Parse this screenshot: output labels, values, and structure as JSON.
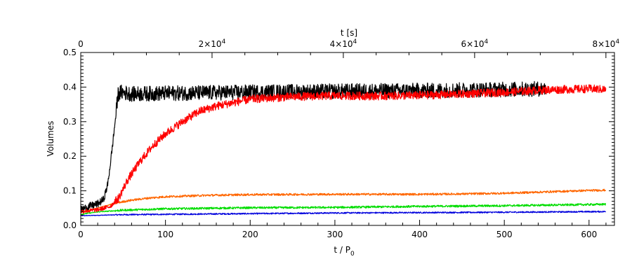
{
  "chart_data": {
    "type": "line",
    "title": "",
    "xlabel": "t / P",
    "xlabel_subscript": "0",
    "ylabel": "Volumes",
    "top_xlabel": "t [s]",
    "xlim": [
      0,
      630
    ],
    "ylim": [
      0,
      0.5
    ],
    "top_xlim": [
      0,
      81300
    ],
    "x_ticks": [
      {
        "value": 0,
        "label": "0"
      },
      {
        "value": 100,
        "label": "100"
      },
      {
        "value": 200,
        "label": "200"
      },
      {
        "value": 300,
        "label": "300"
      },
      {
        "value": 400,
        "label": "400"
      },
      {
        "value": 500,
        "label": "500"
      },
      {
        "value": 600,
        "label": "600"
      }
    ],
    "y_ticks": [
      {
        "value": 0.0,
        "label": "0.0"
      },
      {
        "value": 0.1,
        "label": "0.1"
      },
      {
        "value": 0.2,
        "label": "0.2"
      },
      {
        "value": 0.3,
        "label": "0.3"
      },
      {
        "value": 0.4,
        "label": "0.4"
      },
      {
        "value": 0.5,
        "label": "0.5"
      }
    ],
    "top_ticks": [
      {
        "value": 0,
        "mantissa": "0",
        "exponent": ""
      },
      {
        "value": 20000,
        "mantissa": "2×10",
        "exponent": "4"
      },
      {
        "value": 40000,
        "mantissa": "4×10",
        "exponent": "4"
      },
      {
        "value": 60000,
        "mantissa": "6×10",
        "exponent": "4"
      },
      {
        "value": 80000,
        "mantissa": "8×10",
        "exponent": "4"
      }
    ],
    "grid": false,
    "series": [
      {
        "color": "#0000dd",
        "points": [
          [
            0,
            0.028
          ],
          [
            50,
            0.031
          ],
          [
            100,
            0.032
          ],
          [
            200,
            0.034
          ],
          [
            300,
            0.036
          ],
          [
            400,
            0.037
          ],
          [
            500,
            0.038
          ],
          [
            620,
            0.04
          ]
        ],
        "noise": 0.002
      },
      {
        "color": "#00dd00",
        "points": [
          [
            0,
            0.032
          ],
          [
            20,
            0.039
          ],
          [
            50,
            0.044
          ],
          [
            100,
            0.048
          ],
          [
            200,
            0.051
          ],
          [
            300,
            0.052
          ],
          [
            400,
            0.055
          ],
          [
            500,
            0.057
          ],
          [
            620,
            0.061
          ]
        ],
        "noise": 0.003
      },
      {
        "color": "#ff6600",
        "points": [
          [
            0,
            0.038
          ],
          [
            20,
            0.05
          ],
          [
            40,
            0.064
          ],
          [
            60,
            0.073
          ],
          [
            80,
            0.079
          ],
          [
            100,
            0.083
          ],
          [
            150,
            0.087
          ],
          [
            200,
            0.089
          ],
          [
            300,
            0.09
          ],
          [
            400,
            0.09
          ],
          [
            450,
            0.091
          ],
          [
            500,
            0.093
          ],
          [
            550,
            0.097
          ],
          [
            600,
            0.101
          ],
          [
            620,
            0.102
          ]
        ],
        "noise": 0.003
      },
      {
        "color": "#000000",
        "points": [
          [
            0,
            0.045
          ],
          [
            10,
            0.055
          ],
          [
            20,
            0.062
          ],
          [
            27,
            0.075
          ],
          [
            32,
            0.12
          ],
          [
            37,
            0.22
          ],
          [
            41,
            0.31
          ],
          [
            44,
            0.38
          ],
          [
            48,
            0.385
          ],
          [
            60,
            0.38
          ],
          [
            100,
            0.382
          ],
          [
            200,
            0.385
          ],
          [
            300,
            0.388
          ],
          [
            400,
            0.39
          ],
          [
            500,
            0.393
          ],
          [
            550,
            0.395
          ]
        ],
        "noise": 0.022
      },
      {
        "color": "#ff0000",
        "points": [
          [
            0,
            0.04
          ],
          [
            20,
            0.045
          ],
          [
            35,
            0.055
          ],
          [
            45,
            0.08
          ],
          [
            55,
            0.13
          ],
          [
            70,
            0.185
          ],
          [
            85,
            0.23
          ],
          [
            100,
            0.265
          ],
          [
            120,
            0.3
          ],
          [
            140,
            0.33
          ],
          [
            160,
            0.345
          ],
          [
            200,
            0.365
          ],
          [
            250,
            0.372
          ],
          [
            300,
            0.375
          ],
          [
            350,
            0.374
          ],
          [
            400,
            0.376
          ],
          [
            450,
            0.38
          ],
          [
            500,
            0.385
          ],
          [
            550,
            0.392
          ],
          [
            600,
            0.395
          ],
          [
            620,
            0.393
          ]
        ],
        "noise": 0.012
      }
    ]
  }
}
